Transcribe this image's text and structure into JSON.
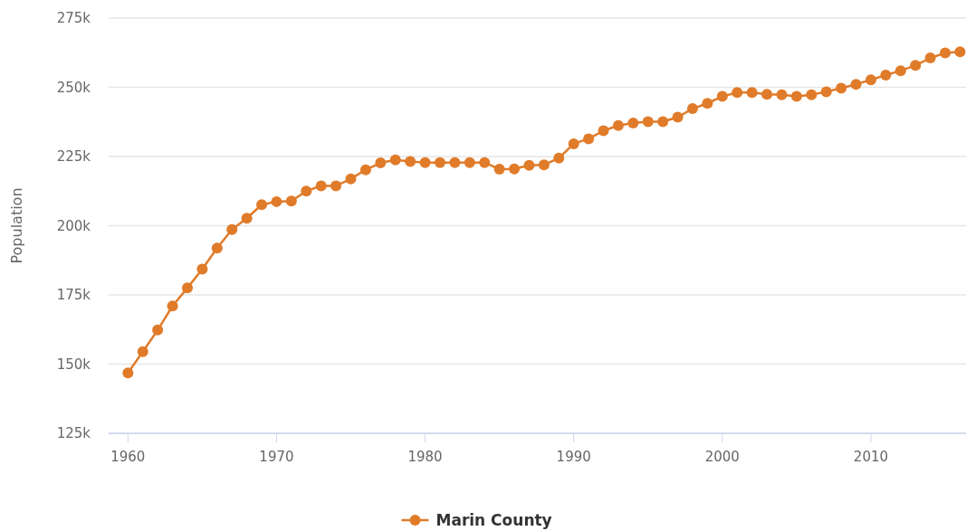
{
  "chart_data": {
    "type": "line",
    "ylabel": "Population",
    "x": [
      1960,
      1961,
      1962,
      1963,
      1964,
      1965,
      1966,
      1967,
      1968,
      1969,
      1970,
      1971,
      1972,
      1973,
      1974,
      1975,
      1976,
      1977,
      1978,
      1979,
      1980,
      1981,
      1982,
      1983,
      1984,
      1985,
      1986,
      1987,
      1988,
      1989,
      1990,
      1991,
      1992,
      1993,
      1994,
      1995,
      1996,
      1997,
      1998,
      1999,
      2000,
      2001,
      2002,
      2003,
      2004,
      2005,
      2006,
      2007,
      2008,
      2009,
      2010,
      2011,
      2012,
      2013,
      2014,
      2015,
      2016
    ],
    "series": [
      {
        "name": "Marin County",
        "color": "#e07b2a",
        "values": [
          146800,
          154500,
          162300,
          171000,
          177500,
          184300,
          191900,
          198600,
          202700,
          207600,
          208700,
          208900,
          212500,
          214400,
          214400,
          216900,
          220200,
          222700,
          223800,
          223200,
          222800,
          222800,
          222800,
          222800,
          222800,
          220400,
          220500,
          221800,
          222000,
          224400,
          229600,
          231400,
          234300,
          236200,
          237100,
          237600,
          237600,
          239200,
          242300,
          244200,
          246700,
          248100,
          248100,
          247500,
          247300,
          246700,
          247300,
          248400,
          249700,
          251100,
          252700,
          254400,
          256000,
          257900,
          260600,
          262400,
          262800
        ]
      }
    ],
    "xlim": [
      1958.7,
      2016.4
    ],
    "xticks": [
      1960,
      1970,
      1980,
      1990,
      2000,
      2010
    ],
    "ylim": [
      125000,
      275000
    ],
    "yticks": [
      {
        "value": 125000,
        "label": "125k"
      },
      {
        "value": 150000,
        "label": "150k"
      },
      {
        "value": 175000,
        "label": "175k"
      },
      {
        "value": 200000,
        "label": "200k"
      },
      {
        "value": 225000,
        "label": "225k"
      },
      {
        "value": 250000,
        "label": "250k"
      },
      {
        "value": 275000,
        "label": "275k"
      }
    ],
    "grid": "y",
    "legend": "bottom",
    "marker": "circle",
    "line_style": "solid"
  }
}
